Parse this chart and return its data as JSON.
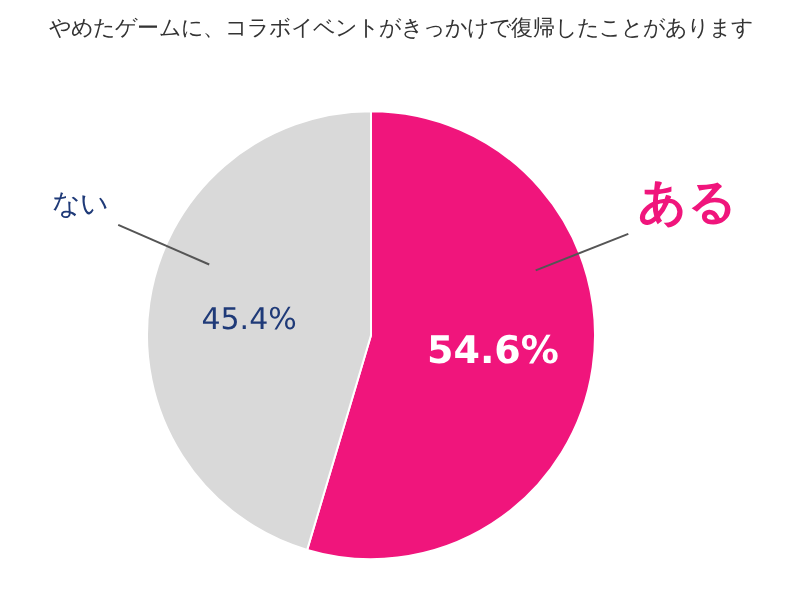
{
  "chart_data": {
    "type": "pie",
    "title": "やめたゲームに、コラボイベントがきっかけで復帰したことがあります",
    "categories": [
      "ある",
      "ない"
    ],
    "values": [
      54.6,
      45.4
    ],
    "colors": [
      "#f0157c",
      "#d9d9d9"
    ],
    "value_labels": [
      "54.6%",
      "45.4%"
    ]
  }
}
